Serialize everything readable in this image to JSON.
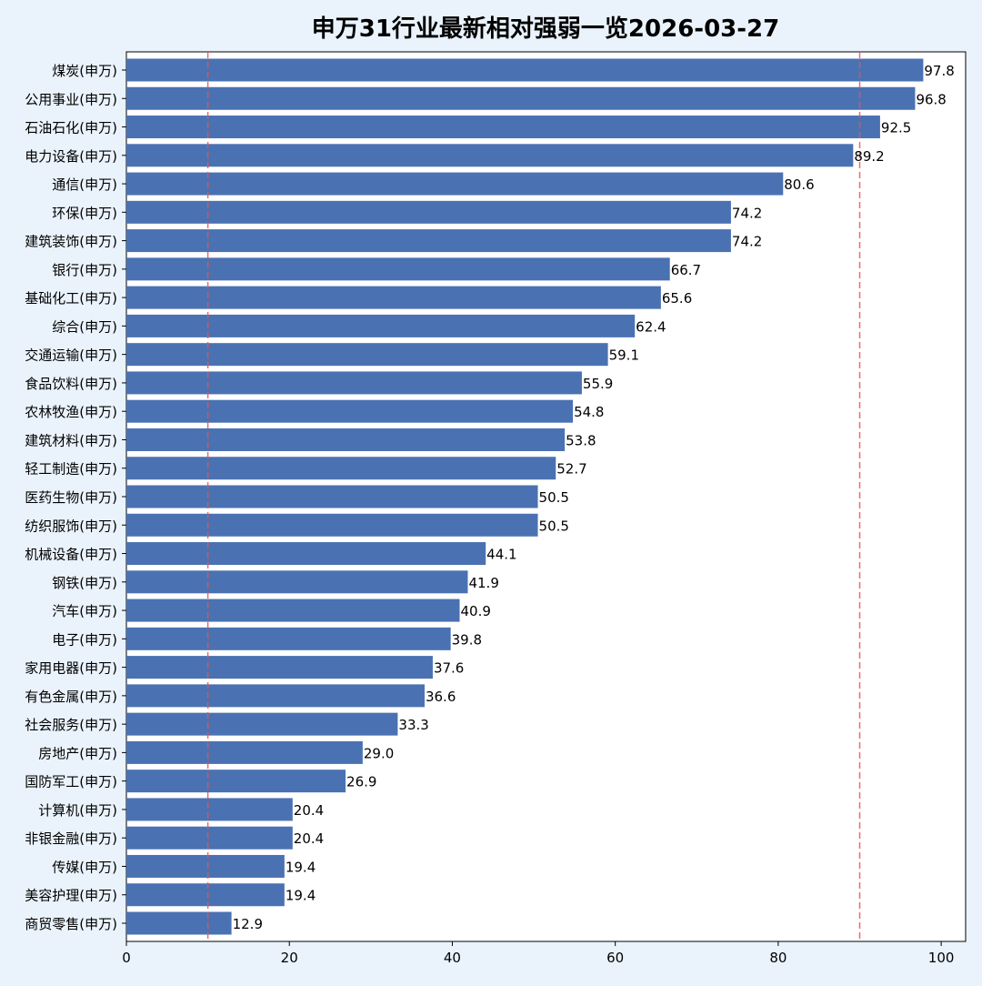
{
  "chart_data": {
    "type": "bar",
    "orientation": "horizontal",
    "title": "申万31行业最新相对强弱一览2026-03-27",
    "xlabel": "",
    "ylabel": "",
    "xlim": [
      0,
      103
    ],
    "xticks": [
      0,
      20,
      40,
      60,
      80,
      100
    ],
    "reference_lines": [
      10,
      90
    ],
    "colors": {
      "bar": "#4a72b2",
      "reference_line": "#e8534e",
      "background": "#eaf3fc",
      "plot_background": "#ffffff"
    },
    "grid": false,
    "categories": [
      "煤炭(申万)",
      "公用事业(申万)",
      "石油石化(申万)",
      "电力设备(申万)",
      "通信(申万)",
      "环保(申万)",
      "建筑装饰(申万)",
      "银行(申万)",
      "基础化工(申万)",
      "综合(申万)",
      "交通运输(申万)",
      "食品饮料(申万)",
      "农林牧渔(申万)",
      "建筑材料(申万)",
      "轻工制造(申万)",
      "医药生物(申万)",
      "纺织服饰(申万)",
      "机械设备(申万)",
      "钢铁(申万)",
      "汽车(申万)",
      "电子(申万)",
      "家用电器(申万)",
      "有色金属(申万)",
      "社会服务(申万)",
      "房地产(申万)",
      "国防军工(申万)",
      "计算机(申万)",
      "非银金融(申万)",
      "传媒(申万)",
      "美容护理(申万)",
      "商贸零售(申万)"
    ],
    "values": [
      97.8,
      96.8,
      92.5,
      89.2,
      80.6,
      74.2,
      74.2,
      66.7,
      65.6,
      62.4,
      59.1,
      55.9,
      54.8,
      53.8,
      52.7,
      50.5,
      50.5,
      44.1,
      41.9,
      40.9,
      39.8,
      37.6,
      36.6,
      33.3,
      29.0,
      26.9,
      20.4,
      20.4,
      19.4,
      19.4,
      12.9
    ],
    "value_labels": [
      "97.8",
      "96.8",
      "92.5",
      "89.2",
      "80.6",
      "74.2",
      "74.2",
      "66.7",
      "65.6",
      "62.4",
      "59.1",
      "55.9",
      "54.8",
      "53.8",
      "52.7",
      "50.5",
      "50.5",
      "44.1",
      "41.9",
      "40.9",
      "39.8",
      "37.6",
      "36.6",
      "33.3",
      "29.0",
      "26.9",
      "20.4",
      "20.4",
      "19.4",
      "19.4",
      "12.9"
    ]
  }
}
